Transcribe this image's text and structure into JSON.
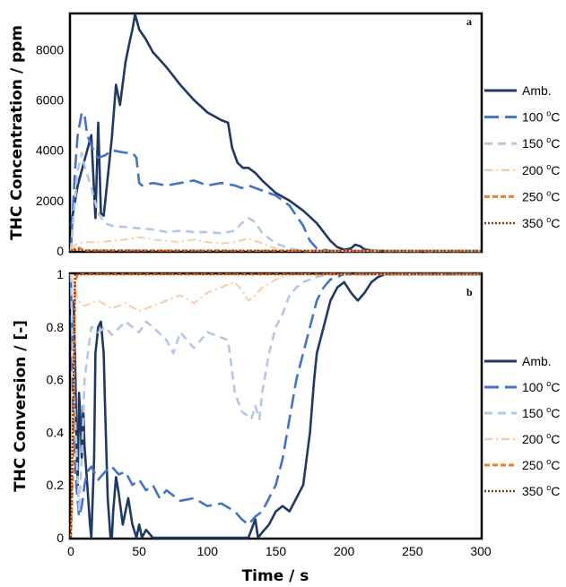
{
  "chart_data": [
    {
      "type": "line",
      "panel_label": "a",
      "ylabel": "THC Concentration / ppm",
      "xlim": [
        0,
        300
      ],
      "ylim": [
        0,
        9400
      ],
      "yticks": [
        0,
        2000,
        4000,
        6000,
        8000
      ],
      "xticks": [],
      "grid": false,
      "legend_placement": "right",
      "series": [
        {
          "name": "Amb.",
          "color": "#1f3864",
          "dash": "solid",
          "x": [
            0,
            5,
            10,
            15,
            18,
            20,
            22,
            24,
            26,
            30,
            33,
            36,
            40,
            43,
            45,
            47,
            50,
            55,
            60,
            70,
            80,
            90,
            100,
            110,
            115,
            118,
            122,
            126,
            130,
            135,
            140,
            150,
            160,
            170,
            180,
            190,
            195,
            200,
            205,
            208,
            212,
            215,
            220,
            230,
            250,
            300
          ],
          "y": [
            1000,
            2600,
            3600,
            4600,
            1300,
            5100,
            1500,
            1400,
            2400,
            4500,
            6600,
            5800,
            7500,
            8300,
            8800,
            9400,
            8800,
            8400,
            7900,
            7300,
            6600,
            6000,
            5500,
            5200,
            5100,
            4100,
            3500,
            3300,
            3300,
            3100,
            2800,
            2300,
            2000,
            1600,
            1100,
            400,
            150,
            50,
            100,
            250,
            180,
            60,
            20,
            0,
            0,
            0
          ]
        },
        {
          "name": "100 °C",
          "color": "#4472c4",
          "dash": "long-dash",
          "x": [
            0,
            3,
            5,
            8,
            10,
            12,
            15,
            18,
            20,
            25,
            30,
            40,
            45,
            48,
            50,
            52,
            60,
            70,
            80,
            90,
            100,
            110,
            120,
            125,
            130,
            140,
            150,
            160,
            170,
            175,
            180,
            190,
            200,
            300
          ],
          "y": [
            0,
            3200,
            4600,
            5500,
            5400,
            4600,
            4200,
            3800,
            3700,
            3800,
            4000,
            3900,
            3900,
            3700,
            2700,
            2600,
            2700,
            2600,
            2700,
            2800,
            2600,
            2700,
            2600,
            2500,
            2600,
            2400,
            2200,
            1800,
            1000,
            400,
            100,
            0,
            0,
            0
          ]
        },
        {
          "name": "150 °C",
          "color": "#b4c7e7",
          "dash": "dash",
          "x": [
            0,
            3,
            5,
            8,
            10,
            15,
            20,
            25,
            30,
            40,
            50,
            60,
            70,
            80,
            90,
            100,
            110,
            120,
            125,
            130,
            135,
            140,
            150,
            160,
            170,
            300
          ],
          "y": [
            0,
            2000,
            3200,
            3900,
            3400,
            2500,
            1500,
            1100,
            1000,
            950,
            900,
            850,
            750,
            800,
            750,
            750,
            700,
            800,
            1100,
            1300,
            1150,
            700,
            300,
            100,
            0,
            0
          ]
        },
        {
          "name": "200 °C",
          "color": "#f8cbad",
          "dash": "dash-dot",
          "x": [
            0,
            5,
            10,
            20,
            30,
            40,
            50,
            60,
            70,
            80,
            90,
            100,
            110,
            120,
            130,
            140,
            150,
            160,
            300
          ],
          "y": [
            100,
            300,
            350,
            350,
            400,
            450,
            550,
            450,
            400,
            350,
            450,
            350,
            300,
            350,
            500,
            300,
            100,
            0,
            0
          ]
        },
        {
          "name": "250 °C",
          "color": "#ed7d31",
          "dash": "short-dash",
          "x": [
            0,
            5,
            10,
            300
          ],
          "y": [
            0,
            150,
            20,
            0
          ]
        },
        {
          "name": "350 °C",
          "color": "#843c0c",
          "dash": "dot",
          "x": [
            0,
            5,
            10,
            300
          ],
          "y": [
            0,
            60,
            10,
            0
          ]
        }
      ]
    },
    {
      "type": "line",
      "panel_label": "b",
      "ylabel": "THC Conversion / [-]",
      "xlabel": "Time / s",
      "xlim": [
        0,
        300
      ],
      "ylim": [
        0,
        1
      ],
      "yticks": [
        0,
        0.2,
        0.4,
        0.6,
        0.8,
        1
      ],
      "ytick_labels": [
        "0",
        "0.2",
        "0.4",
        "0.6",
        "0.8",
        "1"
      ],
      "xticks": [
        0,
        50,
        100,
        150,
        200,
        250,
        300
      ],
      "grid": false,
      "legend_placement": "right",
      "series": [
        {
          "name": "Amb.",
          "color": "#1f3864",
          "dash": "solid",
          "x": [
            2,
            3,
            4,
            5,
            6,
            7,
            8,
            9,
            10,
            12,
            14,
            15,
            17,
            18,
            20,
            22,
            24,
            25,
            27,
            29,
            30,
            31,
            33,
            35,
            38,
            40,
            42,
            45,
            48,
            50,
            52,
            55,
            60,
            65,
            70,
            75,
            80,
            90,
            100,
            110,
            120,
            130,
            135,
            137,
            140,
            145,
            150,
            155,
            160,
            165,
            170,
            175,
            178,
            180,
            185,
            190,
            195,
            200,
            205,
            210,
            215,
            220,
            225,
            230,
            240,
            300
          ],
          "y": [
            0.9,
            0.7,
            0.4,
            0.2,
            0.55,
            0.45,
            0.3,
            0.5,
            0.35,
            0.2,
            0.05,
            0,
            0.3,
            0.7,
            0.8,
            0.82,
            0.7,
            0.5,
            0.15,
            0,
            0,
            0.1,
            0.23,
            0.17,
            0.05,
            0.1,
            0.15,
            0.05,
            0,
            0.05,
            0,
            0.03,
            0,
            0,
            0,
            0,
            0,
            0,
            0,
            0,
            0,
            0,
            0.07,
            0,
            0.02,
            0.05,
            0.1,
            0.12,
            0.1,
            0.15,
            0.2,
            0.4,
            0.6,
            0.7,
            0.8,
            0.9,
            0.95,
            0.97,
            0.93,
            0.9,
            0.93,
            0.97,
            0.99,
            1,
            1,
            1
          ]
        },
        {
          "name": "100 °C",
          "color": "#4472c4",
          "dash": "long-dash",
          "x": [
            0,
            2,
            4,
            6,
            8,
            10,
            12,
            15,
            20,
            25,
            30,
            35,
            40,
            45,
            50,
            55,
            60,
            65,
            70,
            80,
            90,
            100,
            110,
            120,
            125,
            130,
            135,
            140,
            145,
            150,
            155,
            160,
            165,
            170,
            175,
            180,
            185,
            190,
            195,
            200,
            210,
            220,
            300
          ],
          "y": [
            1,
            0.4,
            0.2,
            0.08,
            0.12,
            0.2,
            0.25,
            0.27,
            0.22,
            0.25,
            0.27,
            0.24,
            0.25,
            0.2,
            0.22,
            0.18,
            0.2,
            0.15,
            0.18,
            0.14,
            0.15,
            0.12,
            0.13,
            0.1,
            0.07,
            0.05,
            0.08,
            0.1,
            0.15,
            0.2,
            0.3,
            0.45,
            0.6,
            0.7,
            0.8,
            0.9,
            0.95,
            0.98,
            0.99,
            1,
            1,
            1,
            1
          ]
        },
        {
          "name": "150 °C",
          "color": "#b4c7e7",
          "dash": "dash",
          "x": [
            0,
            2,
            4,
            6,
            8,
            10,
            15,
            20,
            25,
            30,
            40,
            50,
            55,
            60,
            70,
            75,
            80,
            90,
            100,
            110,
            115,
            120,
            125,
            130,
            132,
            135,
            138,
            140,
            145,
            150,
            155,
            160,
            165,
            170,
            175,
            180,
            190,
            200,
            300
          ],
          "y": [
            1,
            0.6,
            0.35,
            0.1,
            0.3,
            0.6,
            0.8,
            0.78,
            0.8,
            0.77,
            0.82,
            0.78,
            0.82,
            0.8,
            0.75,
            0.7,
            0.78,
            0.72,
            0.78,
            0.76,
            0.75,
            0.55,
            0.48,
            0.46,
            0.45,
            0.5,
            0.45,
            0.55,
            0.7,
            0.8,
            0.85,
            0.92,
            0.95,
            0.97,
            0.98,
            0.99,
            1,
            1,
            1
          ]
        },
        {
          "name": "200 °C",
          "color": "#f8cbad",
          "dash": "dash-dot",
          "x": [
            0,
            3,
            5,
            10,
            20,
            30,
            40,
            50,
            60,
            70,
            80,
            90,
            100,
            110,
            120,
            125,
            130,
            135,
            140,
            150,
            160,
            300
          ],
          "y": [
            1,
            0.95,
            0.9,
            0.88,
            0.9,
            0.87,
            0.89,
            0.86,
            0.88,
            0.9,
            0.92,
            0.89,
            0.93,
            0.95,
            0.97,
            0.94,
            0.9,
            0.92,
            0.95,
            0.98,
            1,
            1
          ]
        },
        {
          "name": "250 °C",
          "color": "#ed7d31",
          "dash": "short-dash",
          "x": [
            0,
            2,
            3,
            5,
            8,
            300
          ],
          "y": [
            0,
            0.3,
            0.97,
            1,
            1,
            1
          ]
        },
        {
          "name": "350 °C",
          "color": "#843c0c",
          "dash": "dot",
          "x": [
            0,
            2,
            3,
            5,
            300
          ],
          "y": [
            0,
            0.6,
            1,
            1,
            1
          ]
        }
      ]
    }
  ]
}
